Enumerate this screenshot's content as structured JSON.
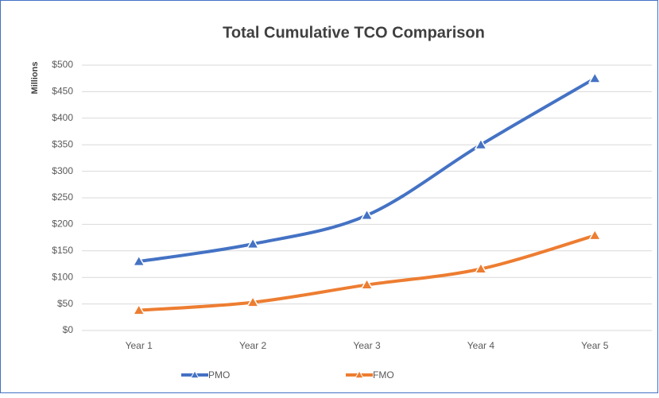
{
  "chart_data": {
    "type": "line",
    "title": "Total Cumulative TCO Comparison",
    "y_label": "Millions",
    "categories": [
      "Year 1",
      "Year 2",
      "Year 3",
      "Year 4",
      "Year 5"
    ],
    "series": [
      {
        "name": "PMO",
        "color": "#4472c4",
        "values": [
          130,
          163,
          217,
          350,
          475
        ]
      },
      {
        "name": "FMO",
        "color": "#ed7d31",
        "values": [
          38,
          53,
          86,
          116,
          179
        ]
      }
    ],
    "ylim": [
      0,
      500
    ],
    "yticks": [
      {
        "value": 0,
        "label": "$0"
      },
      {
        "value": 50,
        "label": "$50"
      },
      {
        "value": 100,
        "label": "$100"
      },
      {
        "value": 150,
        "label": "$150"
      },
      {
        "value": 200,
        "label": "$200"
      },
      {
        "value": 250,
        "label": "$250"
      },
      {
        "value": 300,
        "label": "$300"
      },
      {
        "value": 350,
        "label": "$350"
      },
      {
        "value": 400,
        "label": "$400"
      },
      {
        "value": 450,
        "label": "$450"
      },
      {
        "value": 500,
        "label": "$500"
      }
    ],
    "grid": true,
    "smooth": true,
    "legend": "bottom"
  }
}
